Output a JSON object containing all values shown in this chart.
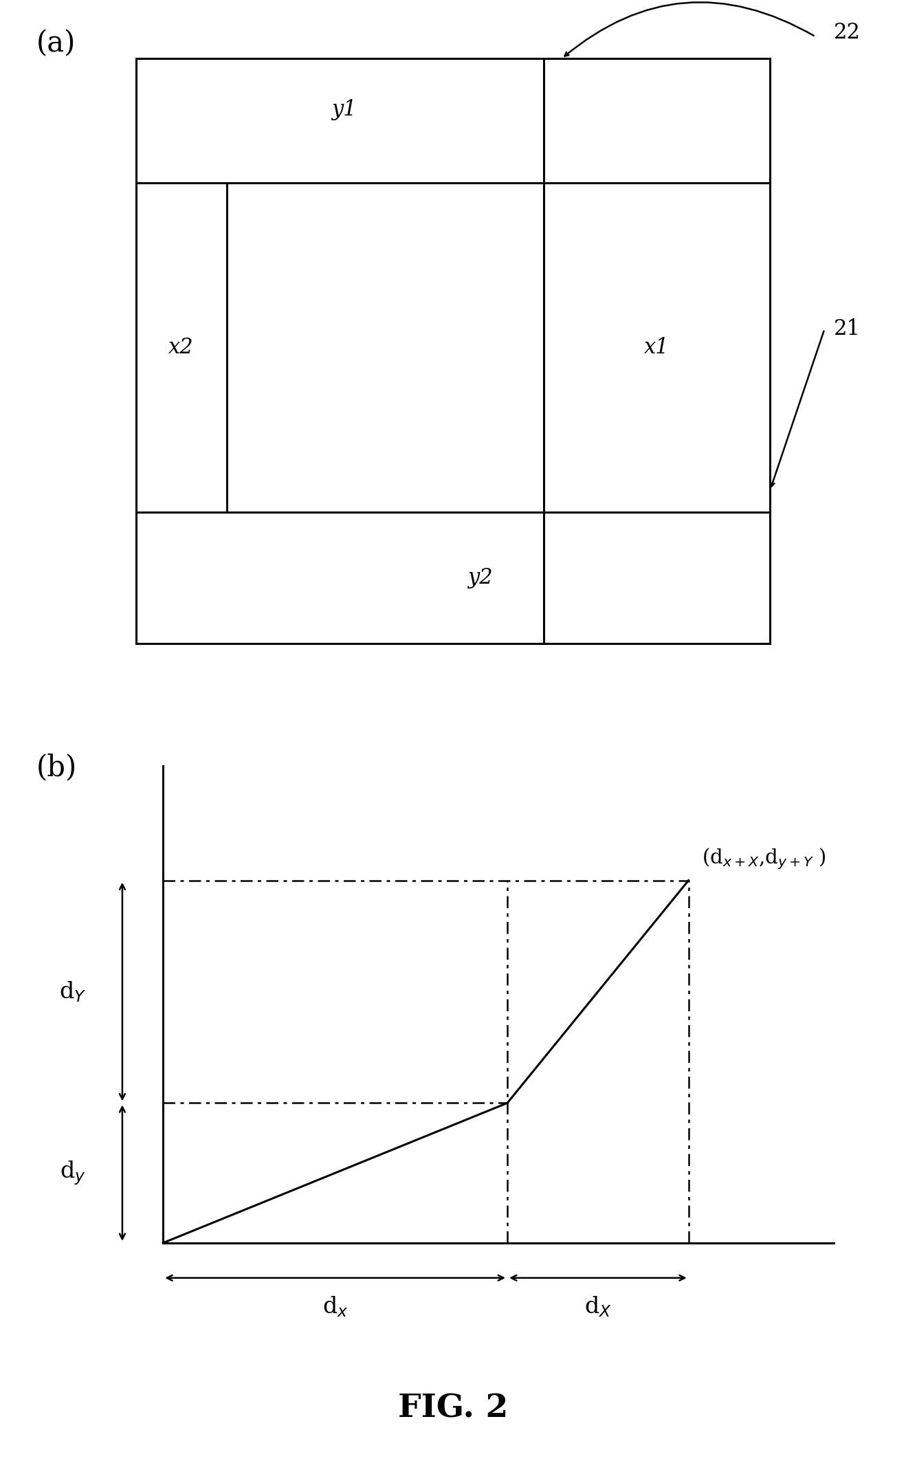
{
  "fig_width": 13.18,
  "fig_height": 21.28,
  "bg_color": "#ffffff",
  "panel_a_label": "(a)",
  "panel_b_label": "(b)",
  "fig_label": "FIG. 2",
  "label_y1": "y1",
  "label_y2": "y2",
  "label_x1": "x1",
  "label_x2": "x2",
  "label_21": "21",
  "label_22": "22",
  "text_color": "#000000",
  "lw": 2.2
}
